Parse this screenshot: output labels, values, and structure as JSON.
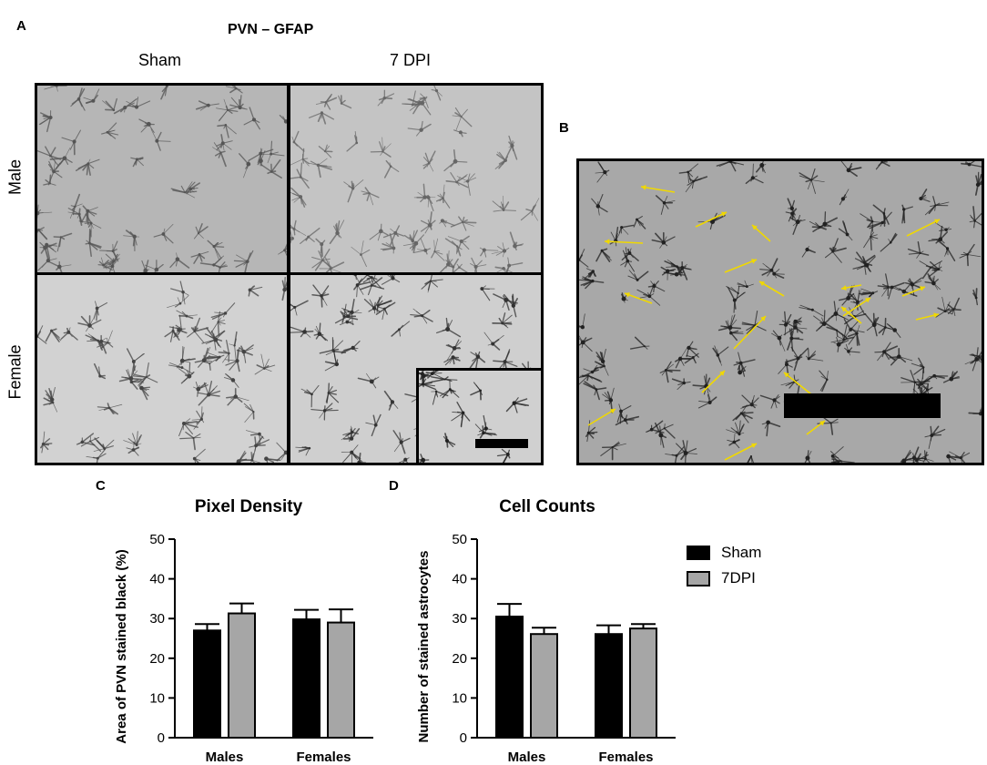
{
  "panel_a": {
    "letter": "A",
    "title": "PVN – GFAP",
    "columns": [
      "Sham",
      "7 DPI"
    ],
    "rows": [
      "Male",
      "Female"
    ]
  },
  "panel_b": {
    "letter": "B"
  },
  "panel_c": {
    "letter": "C"
  },
  "panel_d": {
    "letter": "D"
  },
  "legend": {
    "items": [
      {
        "label": "Sham",
        "color": "#000000"
      },
      {
        "label": "7DPI",
        "color": "#a6a6a6"
      }
    ]
  },
  "chart_data": [
    {
      "type": "bar",
      "title": "Pixel Density",
      "xlabel": "",
      "ylabel": "Area of PVN stained black (%)",
      "ylim": [
        0,
        50
      ],
      "yticks": [
        "0",
        "10",
        "20",
        "30",
        "40",
        "50"
      ],
      "categories": [
        "Males",
        "Females"
      ],
      "series": [
        {
          "name": "Sham",
          "values": [
            27,
            29.8
          ],
          "errors": [
            1.6,
            2.4
          ],
          "color": "#000000"
        },
        {
          "name": "7DPI",
          "values": [
            31.3,
            29
          ],
          "errors": [
            2.5,
            3.3
          ],
          "color": "#a6a6a6"
        }
      ]
    },
    {
      "type": "bar",
      "title": "Cell Counts",
      "xlabel": "",
      "ylabel": "Number of stained astrocytes",
      "ylim": [
        0,
        50
      ],
      "yticks": [
        "0",
        "10",
        "20",
        "30",
        "40",
        "50"
      ],
      "categories": [
        "Males",
        "Females"
      ],
      "series": [
        {
          "name": "Sham",
          "values": [
            30.5,
            26.1
          ],
          "errors": [
            3.2,
            2.2
          ],
          "color": "#000000"
        },
        {
          "name": "7DPI",
          "values": [
            26.1,
            27.5
          ],
          "errors": [
            1.6,
            1.1
          ],
          "color": "#a6a6a6"
        }
      ]
    }
  ]
}
